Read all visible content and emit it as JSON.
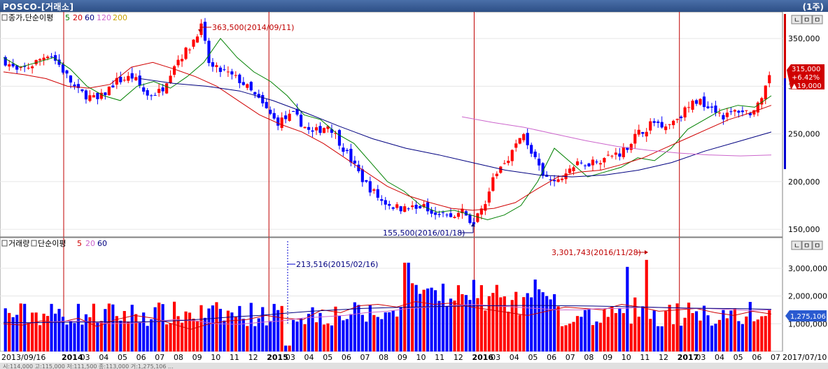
{
  "window": {
    "title": "POSCO-[거래소]",
    "period": "(1주)"
  },
  "price_panel": {
    "legend": {
      "icon": "checkbox-icon",
      "title": "종가,단순이평",
      "items": [
        {
          "label": "5",
          "color": "#008000"
        },
        {
          "label": "20",
          "color": "#d00000"
        },
        {
          "label": "60",
          "color": "#000080"
        },
        {
          "label": "120",
          "color": "#cc66cc"
        },
        {
          "label": "200",
          "color": "#c8a000"
        }
      ]
    },
    "ytick_labels": [
      "350,000",
      "300,000",
      "250,000",
      "200,000",
      "150,000"
    ],
    "high_annotation": "363,500(2014/09/11)",
    "low_annotation": "155,500(2016/01/18)",
    "current": {
      "price": "315,000",
      "change_pct": "+6.42%",
      "change": "▲19,000"
    },
    "panel_buttons": [
      "ㄴ",
      "ㅁ",
      "ㅁ"
    ]
  },
  "volume_panel": {
    "legend": {
      "title_a": "거래량",
      "title_b": "단순이평",
      "items": [
        {
          "label": "5",
          "color": "#d00000"
        },
        {
          "label": "20",
          "color": "#cc66cc"
        },
        {
          "label": "60",
          "color": "#000080"
        }
      ]
    },
    "ytick_labels": [
      "3,000,000",
      "2,000,000",
      "1,000,000"
    ],
    "annotation_a": "213,516(2015/02/16)",
    "annotation_b": "3,301,743(2016/11/28)",
    "current_label": "1,275,106",
    "panel_buttons": [
      "ㄴ",
      "ㅁ",
      "ㅁ"
    ]
  },
  "x_axis": {
    "labels": [
      "2013/09/16",
      "2014",
      "03",
      "04",
      "05",
      "06",
      "07",
      "08",
      "09",
      "10",
      "11",
      "12",
      "2015",
      "03",
      "04",
      "05",
      "06",
      "07",
      "08",
      "09",
      "10",
      "11",
      "12",
      "2016",
      "03",
      "04",
      "05",
      "06",
      "07",
      "08",
      "09",
      "10",
      "11",
      "12",
      "2017",
      "03",
      "04",
      "05",
      "06",
      "07"
    ],
    "end_label": "2017/07/10"
  },
  "status_bar": "시:114,000 고:115,000 저:111,500 종:113,000 거:1,275,106 ...",
  "colors": {
    "up": "#ff0000",
    "down": "#0000ff",
    "year_line": "#c00000"
  },
  "chart_data": [
    {
      "type": "candlestick",
      "title": "종가,단순이평",
      "x_range": [
        "2013/09/16",
        "2017/07/10"
      ],
      "ylim": [
        145000,
        375000
      ],
      "series": [
        {
          "name": "5",
          "values": [
            330000,
            320000,
            325000,
            330000,
            318000,
            300000,
            290000,
            285000,
            300000,
            305000,
            298000,
            310000,
            325000,
            350000,
            330000,
            315000,
            305000,
            290000,
            270000,
            265000,
            250000,
            240000,
            220000,
            200000,
            190000,
            175000,
            168000,
            170000,
            165000,
            160000,
            165000,
            175000,
            200000,
            235000,
            220000,
            205000,
            210000,
            215000,
            225000,
            222000,
            235000,
            255000,
            265000,
            275000,
            280000,
            278000,
            290000
          ]
        },
        {
          "name": "20",
          "values": [
            315000,
            312000,
            308000,
            300000,
            298000,
            302000,
            320000,
            325000,
            318000,
            310000,
            300000,
            285000,
            270000,
            260000,
            252000,
            240000,
            225000,
            210000,
            195000,
            185000,
            178000,
            172000,
            170000,
            172000,
            178000,
            192000,
            205000,
            210000,
            212000,
            218000,
            225000,
            235000,
            245000,
            255000,
            265000,
            272000,
            280000
          ]
        },
        {
          "name": "60",
          "values": [
            308000,
            303000,
            300000,
            295000,
            285000,
            272000,
            258000,
            245000,
            235000,
            228000,
            220000,
            212000,
            207000,
            205000,
            207000,
            212000,
            220000,
            232000,
            242000,
            252000
          ]
        },
        {
          "name": "120",
          "values": [
            268000,
            262000,
            257000,
            250000,
            243000,
            237000,
            233000,
            230000,
            228000,
            227000,
            228000
          ]
        }
      ],
      "highest": {
        "value": 363500,
        "date": "2014/09/11"
      },
      "lowest": {
        "value": 155500,
        "date": "2016/01/18"
      },
      "last_close": 315000
    },
    {
      "type": "bar",
      "title": "거래량",
      "ylim": [
        0,
        3600000
      ],
      "annotations": [
        {
          "value": 213516,
          "date": "2015/02/16"
        },
        {
          "value": 3301743,
          "date": "2016/11/28"
        }
      ],
      "last_value": 1275106,
      "series": [
        {
          "name": "5",
          "values": [
            1000000,
            950000,
            1100000,
            1050000,
            1200000,
            900000,
            1150000,
            1300000,
            1200000,
            1000000,
            800000,
            1000000,
            1100000,
            1150000,
            1300000,
            1200000,
            1150000,
            1500000,
            1400000,
            1650000,
            1700000,
            1600000,
            1800000,
            1700000,
            1750000,
            1600000,
            1500000,
            1400000,
            1300000,
            1450000,
            1600000,
            1550000,
            1500000,
            1700000,
            1600000,
            1450000,
            1500000,
            1550000,
            1400000,
            1300000,
            1450000,
            1350000
          ]
        },
        {
          "name": "20",
          "values": [
            1050000,
            1030000,
            1050000,
            1100000,
            1080000,
            1000000,
            1020000,
            1080000,
            1150000,
            1100000,
            1000000,
            980000,
            1050000,
            1100000,
            1200000,
            1250000,
            1300000,
            1400000,
            1450000,
            1550000,
            1600000,
            1650000,
            1700000,
            1650000,
            1600000,
            1550000,
            1500000,
            1500000,
            1550000,
            1550000,
            1600000,
            1580000,
            1550000,
            1550000,
            1520000,
            1480000,
            1500000
          ]
        },
        {
          "name": "60",
          "values": [
            1050000,
            1040000,
            1050000,
            1060000,
            1070000,
            1060000,
            1080000,
            1120000,
            1180000,
            1250000,
            1300000,
            1380000,
            1450000,
            1500000,
            1550000,
            1580000,
            1600000,
            1620000,
            1640000,
            1650000,
            1660000,
            1660000,
            1650000,
            1640000,
            1620000,
            1600000,
            1580000,
            1560000,
            1550000,
            1540000,
            1520000
          ]
        }
      ]
    }
  ]
}
